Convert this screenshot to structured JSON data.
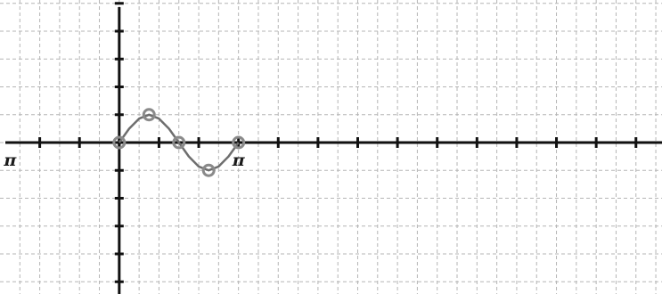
{
  "chart_data": {
    "type": "line",
    "title": "",
    "xlabel": "",
    "ylabel": "",
    "xlim": [
      -3.14159,
      14.3
    ],
    "ylim": [
      -2.72,
      2.56
    ],
    "x_grid_step": 0.5236,
    "y_grid_step": 0.5,
    "grid": true,
    "tick_labels": [
      {
        "text": "− π",
        "value": -3.14159
      },
      {
        "text": "π",
        "value": 3.14159
      }
    ],
    "series": [
      {
        "x": [
          0,
          0.262,
          0.524,
          0.785,
          1.047,
          1.309,
          1.571,
          1.833,
          2.094,
          2.356,
          2.618,
          2.88,
          3.142
        ],
        "values": [
          0,
          0.25,
          0.43,
          0.5,
          0.43,
          0.25,
          0,
          -0.25,
          -0.43,
          -0.5,
          -0.43,
          -0.25,
          0
        ]
      }
    ],
    "highlighted_points": [
      {
        "x": 0,
        "y": 0
      },
      {
        "x": 0.785,
        "y": 0.5
      },
      {
        "x": 1.571,
        "y": 0
      },
      {
        "x": 2.356,
        "y": -0.5
      },
      {
        "x": 3.142,
        "y": 0
      }
    ]
  },
  "colors": {
    "background": "#ffffff",
    "grid": "#b5b5b5",
    "axis": "#111111",
    "curve": "#6e6e6e",
    "point": "#8a8a8a"
  }
}
